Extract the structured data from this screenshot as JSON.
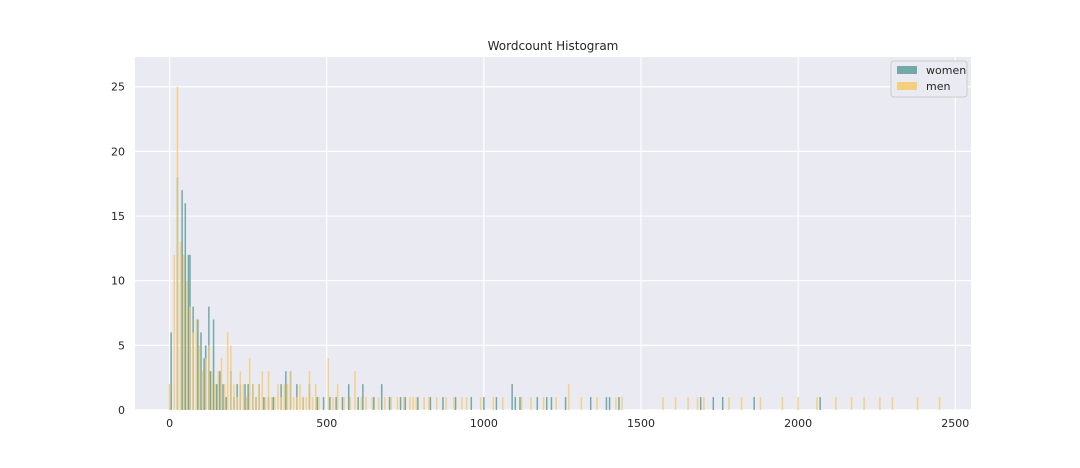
{
  "chart_data": {
    "type": "bar",
    "subtype": "overlaid-histogram",
    "title": "Wordcount Histogram",
    "xlabel": "",
    "ylabel": "",
    "xlim": [
      -110,
      2550
    ],
    "ylim": [
      0,
      27.3
    ],
    "xticks": [
      0,
      500,
      1000,
      1500,
      2000,
      2500
    ],
    "yticks": [
      0,
      5,
      10,
      15,
      20,
      25
    ],
    "grid": true,
    "legend_position": "top-right",
    "bin_width": 5,
    "series": [
      {
        "name": "women",
        "color": "#5e9e9b",
        "points": [
          [
            5,
            6
          ],
          [
            25,
            18
          ],
          [
            40,
            17
          ],
          [
            50,
            16
          ],
          [
            60,
            12
          ],
          [
            65,
            12
          ],
          [
            75,
            8
          ],
          [
            90,
            7
          ],
          [
            100,
            6
          ],
          [
            110,
            4
          ],
          [
            115,
            5
          ],
          [
            125,
            8
          ],
          [
            130,
            3
          ],
          [
            140,
            7
          ],
          [
            150,
            2
          ],
          [
            160,
            3
          ],
          [
            170,
            2
          ],
          [
            180,
            1
          ],
          [
            195,
            3
          ],
          [
            205,
            1
          ],
          [
            215,
            2
          ],
          [
            225,
            2
          ],
          [
            240,
            2
          ],
          [
            250,
            2
          ],
          [
            265,
            2
          ],
          [
            275,
            1
          ],
          [
            285,
            2
          ],
          [
            300,
            1
          ],
          [
            315,
            1
          ],
          [
            330,
            1
          ],
          [
            355,
            2
          ],
          [
            370,
            3
          ],
          [
            385,
            3
          ],
          [
            405,
            2
          ],
          [
            425,
            1
          ],
          [
            445,
            2
          ],
          [
            470,
            1
          ],
          [
            490,
            1
          ],
          [
            510,
            1
          ],
          [
            530,
            1
          ],
          [
            550,
            1
          ],
          [
            570,
            2
          ],
          [
            600,
            1
          ],
          [
            615,
            2
          ],
          [
            650,
            1
          ],
          [
            675,
            2
          ],
          [
            700,
            1
          ],
          [
            735,
            1
          ],
          [
            750,
            1
          ],
          [
            790,
            1
          ],
          [
            830,
            1
          ],
          [
            870,
            1
          ],
          [
            910,
            1
          ],
          [
            960,
            1
          ],
          [
            1000,
            1
          ],
          [
            1040,
            1
          ],
          [
            1090,
            2
          ],
          [
            1100,
            1
          ],
          [
            1115,
            1
          ],
          [
            1170,
            1
          ],
          [
            1200,
            1
          ],
          [
            1215,
            1
          ],
          [
            1260,
            1
          ],
          [
            1340,
            1
          ],
          [
            1390,
            1
          ],
          [
            1400,
            1
          ],
          [
            1430,
            1
          ],
          [
            1690,
            1
          ],
          [
            1730,
            1
          ],
          [
            1760,
            1
          ],
          [
            1860,
            1
          ],
          [
            2070,
            1
          ]
        ]
      },
      {
        "name": "men",
        "color": "#f7c96a",
        "points": [
          [
            0,
            2
          ],
          [
            15,
            12
          ],
          [
            25,
            25
          ],
          [
            35,
            13
          ],
          [
            45,
            12
          ],
          [
            55,
            10
          ],
          [
            65,
            8
          ],
          [
            75,
            6
          ],
          [
            85,
            7
          ],
          [
            95,
            5
          ],
          [
            105,
            3
          ],
          [
            115,
            4
          ],
          [
            125,
            5
          ],
          [
            135,
            3
          ],
          [
            145,
            2
          ],
          [
            155,
            3
          ],
          [
            165,
            4
          ],
          [
            175,
            2
          ],
          [
            185,
            6
          ],
          [
            195,
            5
          ],
          [
            205,
            2
          ],
          [
            215,
            1
          ],
          [
            225,
            3
          ],
          [
            235,
            2
          ],
          [
            245,
            1
          ],
          [
            255,
            4
          ],
          [
            265,
            2
          ],
          [
            275,
            1
          ],
          [
            285,
            2
          ],
          [
            295,
            3
          ],
          [
            305,
            1
          ],
          [
            315,
            3
          ],
          [
            325,
            1
          ],
          [
            335,
            1
          ],
          [
            345,
            2
          ],
          [
            355,
            1
          ],
          [
            365,
            2
          ],
          [
            375,
            2
          ],
          [
            385,
            3
          ],
          [
            395,
            1
          ],
          [
            405,
            1
          ],
          [
            415,
            2
          ],
          [
            425,
            1
          ],
          [
            435,
            1
          ],
          [
            445,
            3
          ],
          [
            455,
            1
          ],
          [
            465,
            2
          ],
          [
            475,
            1
          ],
          [
            505,
            4
          ],
          [
            520,
            1
          ],
          [
            535,
            2
          ],
          [
            555,
            1
          ],
          [
            575,
            1
          ],
          [
            590,
            3
          ],
          [
            610,
            1
          ],
          [
            625,
            1
          ],
          [
            645,
            1
          ],
          [
            665,
            1
          ],
          [
            685,
            1
          ],
          [
            705,
            1
          ],
          [
            725,
            1
          ],
          [
            745,
            1
          ],
          [
            765,
            1
          ],
          [
            775,
            1
          ],
          [
            785,
            1
          ],
          [
            810,
            1
          ],
          [
            825,
            1
          ],
          [
            850,
            1
          ],
          [
            880,
            1
          ],
          [
            905,
            1
          ],
          [
            930,
            1
          ],
          [
            945,
            1
          ],
          [
            990,
            1
          ],
          [
            1030,
            1
          ],
          [
            1060,
            1
          ],
          [
            1120,
            1
          ],
          [
            1150,
            1
          ],
          [
            1190,
            1
          ],
          [
            1230,
            1
          ],
          [
            1270,
            2
          ],
          [
            1310,
            1
          ],
          [
            1360,
            1
          ],
          [
            1420,
            1
          ],
          [
            1440,
            1
          ],
          [
            1570,
            1
          ],
          [
            1610,
            1
          ],
          [
            1650,
            1
          ],
          [
            1680,
            1
          ],
          [
            1700,
            1
          ],
          [
            1780,
            1
          ],
          [
            1820,
            1
          ],
          [
            1880,
            1
          ],
          [
            1950,
            1
          ],
          [
            2000,
            1
          ],
          [
            2060,
            1
          ],
          [
            2120,
            1
          ],
          [
            2170,
            1
          ],
          [
            2210,
            1
          ],
          [
            2260,
            1
          ],
          [
            2300,
            1
          ],
          [
            2380,
            1
          ],
          [
            2450,
            1
          ]
        ]
      }
    ]
  }
}
